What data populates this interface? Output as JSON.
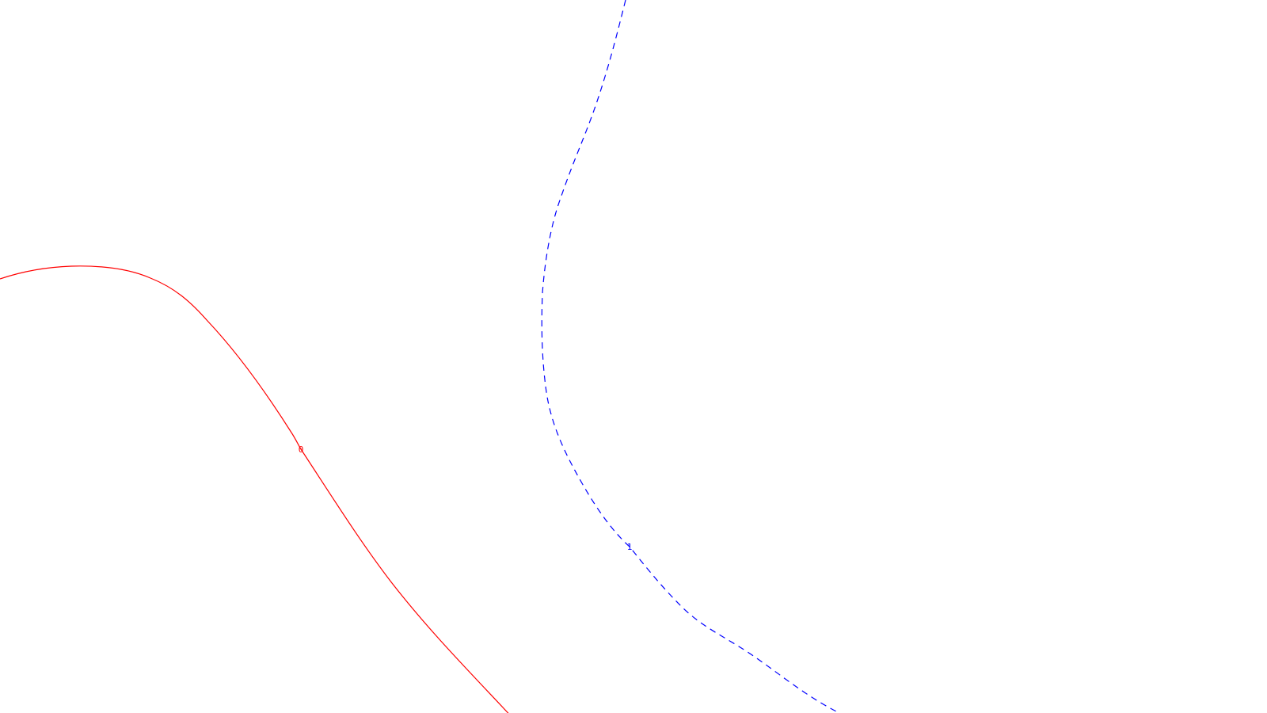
{
  "contours": [
    {
      "id": "red",
      "label": "0",
      "color": "#ff0000",
      "style": "solid"
    },
    {
      "id": "blue",
      "label": "1",
      "color": "#0000ff",
      "style": "dashed"
    }
  ]
}
